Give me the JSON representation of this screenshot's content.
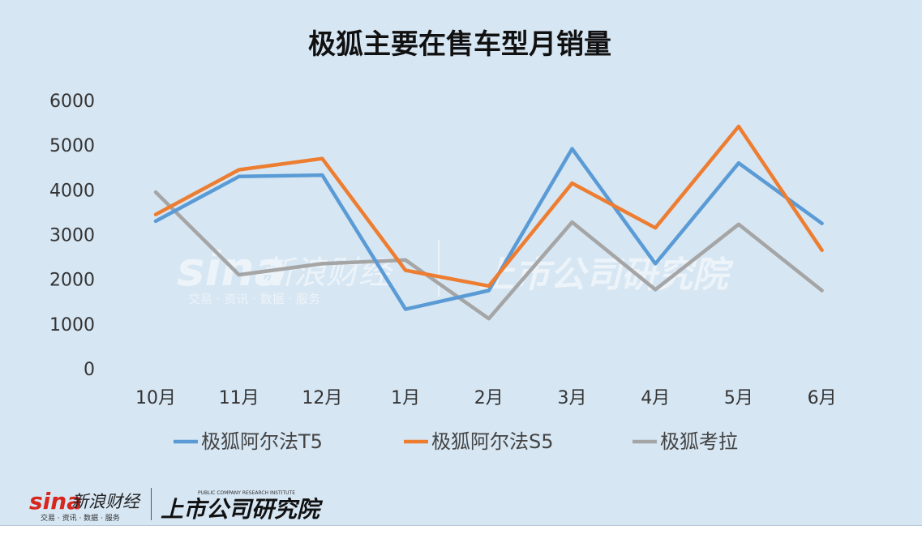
{
  "chart_data": {
    "type": "line",
    "title": "极狐主要在售车型月销量",
    "categories": [
      "10月",
      "11月",
      "12月",
      "1月",
      "2月",
      "3月",
      "4月",
      "5月",
      "6月"
    ],
    "series": [
      {
        "name": "极狐阿尔法T5",
        "color": "#5b9bd5",
        "values": [
          3300,
          4300,
          4330,
          1330,
          1750,
          4920,
          2350,
          4600,
          3250
        ]
      },
      {
        "name": "极狐阿尔法S5",
        "color": "#ed7d31",
        "values": [
          3450,
          4450,
          4700,
          2200,
          1850,
          4150,
          3150,
          5420,
          2650
        ]
      },
      {
        "name": "极狐考拉",
        "color": "#a5a5a5",
        "values": [
          3950,
          2100,
          2350,
          2430,
          1120,
          3280,
          1770,
          3230,
          1750
        ]
      }
    ],
    "yticks": [
      0,
      1000,
      2000,
      3000,
      4000,
      5000,
      6000
    ],
    "ylim": [
      0,
      6000
    ],
    "grid": false,
    "legend": "bottom"
  },
  "watermark": {
    "brand": "sina",
    "brand_cn": "新浪财经",
    "tagline": "交易 · 资讯 · 数据 · 服务",
    "institute": "上市公司研究院",
    "institute_en": "PUBLIC COMPANY RESEARCH INSTITUTE"
  }
}
